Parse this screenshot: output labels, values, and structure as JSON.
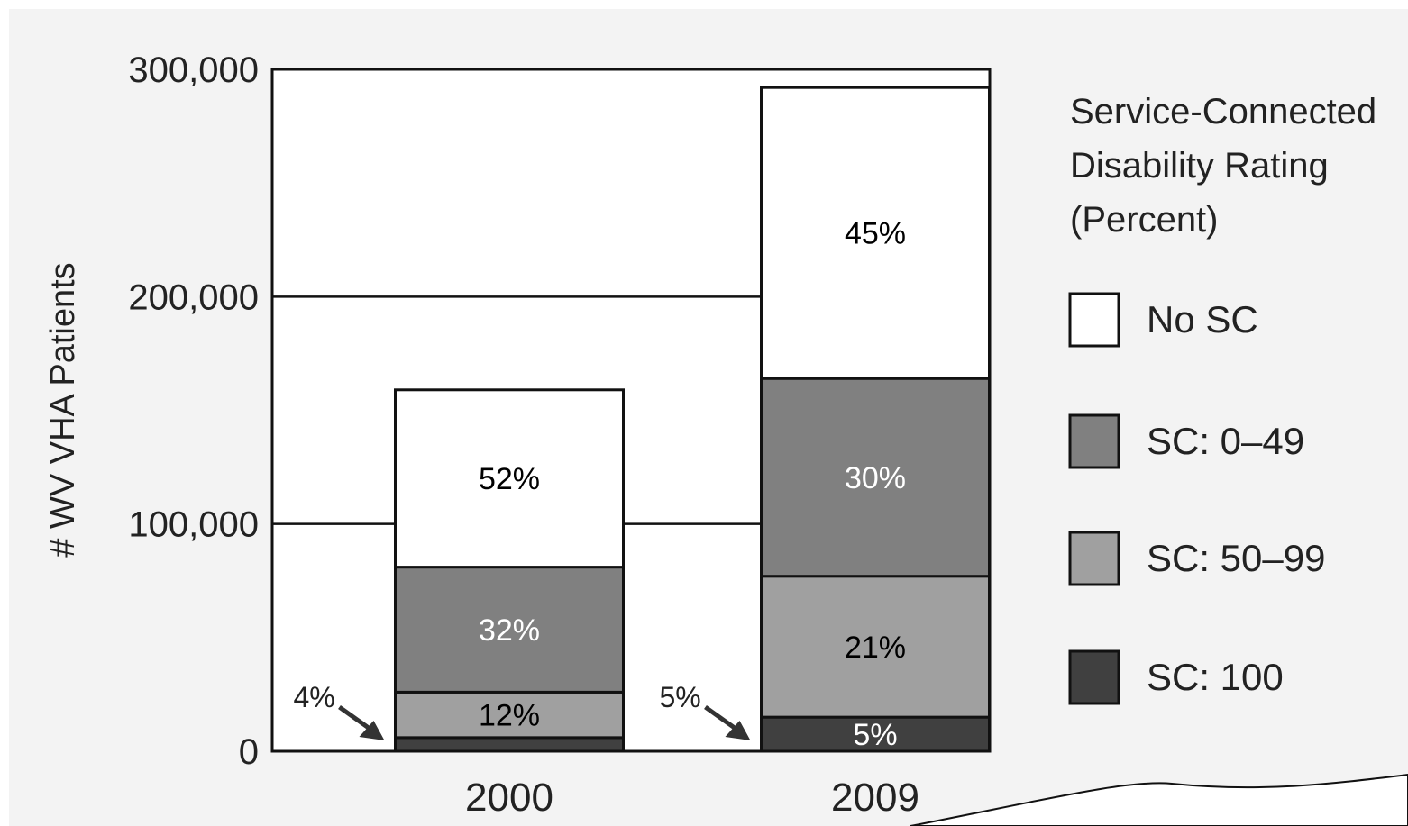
{
  "chart_data": {
    "type": "bar",
    "stacked": true,
    "title": "",
    "xlabel": "",
    "ylabel": "# WV VHA Patients",
    "ylim": [
      0,
      300000
    ],
    "y_ticks": [
      0,
      100000,
      200000,
      300000
    ],
    "y_tick_labels": [
      "0",
      "100,000",
      "200,000",
      "300,000"
    ],
    "grid": true,
    "categories": [
      "2000",
      "2009"
    ],
    "legend": {
      "title_lines": [
        "Service-Connected",
        "Disability Rating",
        "(Percent)"
      ],
      "position": "right"
    },
    "series": [
      {
        "name": "SC: 100",
        "color": "#404040",
        "label_color": "#ffffff",
        "values": [
          6000,
          15000
        ],
        "percent_labels": [
          "4%",
          "5%"
        ]
      },
      {
        "name": "SC: 50–99",
        "color": "#a0a0a0",
        "label_color": "#000000",
        "values": [
          20000,
          62000
        ],
        "percent_labels": [
          "12%",
          "21%"
        ]
      },
      {
        "name": "SC: 0–49",
        "color": "#808080",
        "label_color": "#ffffff",
        "values": [
          55000,
          87000
        ],
        "percent_labels": [
          "32%",
          "30%"
        ]
      },
      {
        "name": "No SC",
        "color": "#ffffff",
        "label_color": "#000000",
        "values": [
          78000,
          128000
        ],
        "percent_labels": [
          "52%",
          "45%"
        ]
      }
    ]
  }
}
